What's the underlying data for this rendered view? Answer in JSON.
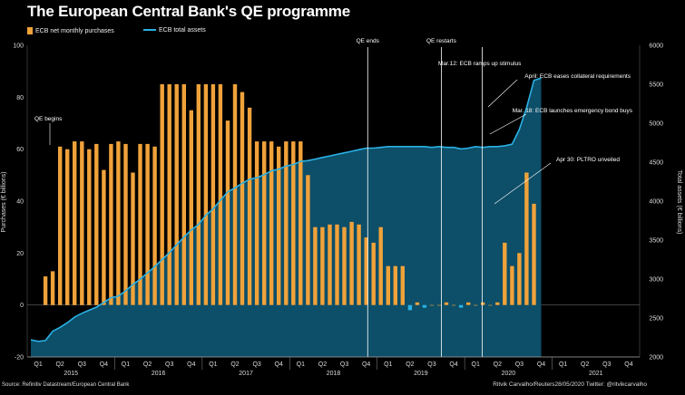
{
  "title": "The European Central Bank's QE programme",
  "legend": {
    "bars_label": "ECB net monthly purchases",
    "line_label": "ECB total assets"
  },
  "footer": {
    "source": "Source: Refinitiv Datastream/European Central Bank",
    "credit": "Ritvik Carvalho/Reuters28/05/2020 Twitter: @ritvikcarvalho"
  },
  "colors": {
    "bars": "#f0a23a",
    "line": "#2bb2e6",
    "area": "#0d4e68",
    "axis": "#999999"
  },
  "chart_data": {
    "type": "bar+line",
    "title": "The European Central Bank's QE programme",
    "ylabel_left": "Purchases (€ billions)",
    "ylabel_right": "Total assets (€ billions)",
    "ylim_left": [
      -20,
      100
    ],
    "ylim_right": [
      2000,
      6000
    ],
    "yticks_left": [
      -20,
      0,
      20,
      40,
      60,
      80,
      100
    ],
    "yticks_right": [
      2000,
      2500,
      3000,
      3500,
      4000,
      4500,
      5000,
      5500,
      6000
    ],
    "quarter_labels": [
      "Q1",
      "Q2",
      "Q3",
      "Q4",
      "Q1",
      "Q2",
      "Q3",
      "Q4",
      "Q1",
      "Q2",
      "Q3",
      "Q4",
      "Q1",
      "Q2",
      "Q3",
      "Q4",
      "Q1",
      "Q2",
      "Q3",
      "Q4",
      "Q1",
      "Q2",
      "Q3",
      "Q4",
      "Q1",
      "Q2",
      "Q3",
      "Q4"
    ],
    "years": [
      "2015",
      "2016",
      "2017",
      "2018",
      "2019",
      "2020",
      "2021"
    ],
    "monthly_purchases": {
      "start": "2015-03",
      "values": [
        11,
        13,
        61,
        60,
        63,
        63,
        60,
        62,
        52,
        62,
        63,
        62,
        51,
        62,
        62,
        61,
        85,
        85,
        85,
        85,
        75,
        85,
        85,
        85,
        85,
        71,
        85,
        82,
        76,
        63,
        63,
        63,
        61,
        63,
        63,
        63,
        50,
        30,
        30,
        31,
        31,
        30,
        32,
        31,
        26,
        24,
        30,
        15,
        15,
        15,
        -2,
        1,
        -1,
        0,
        0,
        1,
        0,
        -1,
        1,
        0,
        1,
        0,
        1,
        24,
        15,
        20,
        51,
        39
      ]
    },
    "total_assets": {
      "start": "2015-01",
      "values": [
        2220,
        2200,
        2210,
        2330,
        2380,
        2440,
        2510,
        2560,
        2600,
        2640,
        2700,
        2760,
        2780,
        2850,
        2930,
        3000,
        3080,
        3160,
        3250,
        3340,
        3440,
        3540,
        3630,
        3700,
        3820,
        3900,
        4010,
        4120,
        4170,
        4230,
        4280,
        4300,
        4340,
        4390,
        4410,
        4450,
        4470,
        4510,
        4520,
        4540,
        4560,
        4580,
        4600,
        4620,
        4640,
        4660,
        4680,
        4680,
        4690,
        4700,
        4700,
        4700,
        4700,
        4700,
        4700,
        4690,
        4700,
        4690,
        4690,
        4670,
        4680,
        4700,
        4690,
        4700,
        4700,
        4710,
        4730,
        4920,
        5200,
        5550,
        5580
      ]
    },
    "annotations": [
      {
        "label": "QE begins"
      },
      {
        "label": "QE ends"
      },
      {
        "label": "QE restarts"
      },
      {
        "label": "Mar.12: ECB ramps up stimulus"
      },
      {
        "label": "April: ECB eases collateral requirements"
      },
      {
        "label": "Mar. 18: ECB launches emergency bond buys"
      },
      {
        "label": "Apr 30: PLTRO unveiled"
      }
    ]
  }
}
